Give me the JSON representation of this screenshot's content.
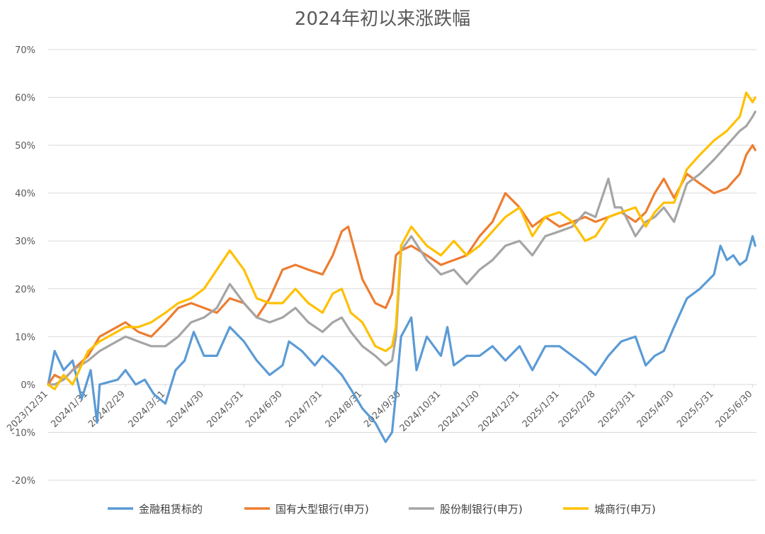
{
  "chart_data": {
    "type": "line",
    "title": "2024年初以来涨跌幅",
    "ylim": [
      -0.2,
      0.7
    ],
    "yticks": [
      -0.2,
      -0.1,
      0,
      0.1,
      0.2,
      0.3,
      0.4,
      0.5,
      0.6,
      0.7
    ],
    "ytick_labels": [
      "-20%",
      "-10%",
      "0%",
      "10%",
      "20%",
      "30%",
      "40%",
      "50%",
      "60%",
      "70%"
    ],
    "x_ticks": [
      "2023/12/31",
      "2024/1/31",
      "2024/2/29",
      "2024/3/31",
      "2024/4/30",
      "2024/5/31",
      "2024/6/30",
      "2024/7/31",
      "2024/8/31",
      "2024/9/30",
      "2024/10/31",
      "2024/11/30",
      "2024/12/31",
      "2025/1/31",
      "2025/2/28",
      "2025/3/31",
      "2025/4/30",
      "2025/5/31",
      "2025/6/30"
    ],
    "grid": true,
    "legend_position": "bottom",
    "series": [
      {
        "name": "金融租赁标的",
        "color": "#5B9BD5",
        "points": [
          [
            "2023/12/31",
            0
          ],
          [
            "2024/1/5",
            0.07
          ],
          [
            "2024/1/12",
            0.03
          ],
          [
            "2024/1/19",
            0.05
          ],
          [
            "2024/1/26",
            -0.03
          ],
          [
            "2024/2/2",
            0.03
          ],
          [
            "2024/2/7",
            -0.08
          ],
          [
            "2024/2/9",
            0
          ],
          [
            "2024/2/23",
            0.01
          ],
          [
            "2024/2/29",
            0.03
          ],
          [
            "2024/3/8",
            0
          ],
          [
            "2024/3/15",
            0.01
          ],
          [
            "2024/3/22",
            -0.02
          ],
          [
            "2024/3/31",
            -0.04
          ],
          [
            "2024/4/8",
            0.03
          ],
          [
            "2024/4/15",
            0.05
          ],
          [
            "2024/4/22",
            0.11
          ],
          [
            "2024/4/30",
            0.06
          ],
          [
            "2024/5/10",
            0.06
          ],
          [
            "2024/5/20",
            0.12
          ],
          [
            "2024/5/31",
            0.09
          ],
          [
            "2024/6/10",
            0.05
          ],
          [
            "2024/6/20",
            0.02
          ],
          [
            "2024/6/30",
            0.04
          ],
          [
            "2024/7/5",
            0.09
          ],
          [
            "2024/7/15",
            0.07
          ],
          [
            "2024/7/25",
            0.04
          ],
          [
            "2024/7/31",
            0.06
          ],
          [
            "2024/8/8",
            0.04
          ],
          [
            "2024/8/15",
            0.02
          ],
          [
            "2024/8/22",
            -0.01
          ],
          [
            "2024/8/31",
            -0.05
          ],
          [
            "2024/9/10",
            -0.08
          ],
          [
            "2024/9/18",
            -0.12
          ],
          [
            "2024/9/23",
            -0.1
          ],
          [
            "2024/9/26",
            -0.02
          ],
          [
            "2024/9/30",
            0.1
          ],
          [
            "2024/10/8",
            0.14
          ],
          [
            "2024/10/12",
            0.03
          ],
          [
            "2024/10/20",
            0.1
          ],
          [
            "2024/10/31",
            0.06
          ],
          [
            "2024/11/5",
            0.12
          ],
          [
            "2024/11/10",
            0.04
          ],
          [
            "2024/11/20",
            0.06
          ],
          [
            "2024/11/30",
            0.06
          ],
          [
            "2024/12/10",
            0.08
          ],
          [
            "2024/12/20",
            0.05
          ],
          [
            "2024/12/31",
            0.08
          ],
          [
            "2025/1/10",
            0.03
          ],
          [
            "2025/1/20",
            0.08
          ],
          [
            "2025/1/31",
            0.08
          ],
          [
            "2025/2/10",
            0.06
          ],
          [
            "2025/2/20",
            0.04
          ],
          [
            "2025/2/28",
            0.02
          ],
          [
            "2025/3/10",
            0.06
          ],
          [
            "2025/3/20",
            0.09
          ],
          [
            "2025/3/31",
            0.1
          ],
          [
            "2025/4/8",
            0.04
          ],
          [
            "2025/4/15",
            0.06
          ],
          [
            "2025/4/22",
            0.07
          ],
          [
            "2025/4/30",
            0.12
          ],
          [
            "2025/5/10",
            0.18
          ],
          [
            "2025/5/20",
            0.2
          ],
          [
            "2025/5/31",
            0.23
          ],
          [
            "2025/6/5",
            0.29
          ],
          [
            "2025/6/10",
            0.26
          ],
          [
            "2025/6/15",
            0.27
          ],
          [
            "2025/6/20",
            0.25
          ],
          [
            "2025/6/25",
            0.26
          ],
          [
            "2025/6/30",
            0.31
          ],
          [
            "2025/7/2",
            0.29
          ]
        ]
      },
      {
        "name": "国有大型银行(申万)",
        "color": "#ED7D31",
        "points": [
          [
            "2023/12/31",
            0
          ],
          [
            "2024/1/5",
            0.02
          ],
          [
            "2024/1/12",
            0.01
          ],
          [
            "2024/1/19",
            0.03
          ],
          [
            "2024/1/31",
            0.06
          ],
          [
            "2024/2/9",
            0.1
          ],
          [
            "2024/2/29",
            0.13
          ],
          [
            "2024/3/10",
            0.11
          ],
          [
            "2024/3/20",
            0.1
          ],
          [
            "2024/3/31",
            0.13
          ],
          [
            "2024/4/10",
            0.16
          ],
          [
            "2024/4/20",
            0.17
          ],
          [
            "2024/4/30",
            0.16
          ],
          [
            "2024/5/10",
            0.15
          ],
          [
            "2024/5/20",
            0.18
          ],
          [
            "2024/5/31",
            0.17
          ],
          [
            "2024/6/10",
            0.14
          ],
          [
            "2024/6/20",
            0.18
          ],
          [
            "2024/6/30",
            0.24
          ],
          [
            "2024/7/10",
            0.25
          ],
          [
            "2024/7/20",
            0.24
          ],
          [
            "2024/7/31",
            0.23
          ],
          [
            "2024/8/8",
            0.27
          ],
          [
            "2024/8/15",
            0.32
          ],
          [
            "2024/8/20",
            0.33
          ],
          [
            "2024/8/31",
            0.22
          ],
          [
            "2024/9/10",
            0.17
          ],
          [
            "2024/9/18",
            0.16
          ],
          [
            "2024/9/23",
            0.19
          ],
          [
            "2024/9/26",
            0.27
          ],
          [
            "2024/9/30",
            0.28
          ],
          [
            "2024/10/8",
            0.29
          ],
          [
            "2024/10/20",
            0.27
          ],
          [
            "2024/10/31",
            0.25
          ],
          [
            "2024/11/10",
            0.26
          ],
          [
            "2024/11/20",
            0.27
          ],
          [
            "2024/11/30",
            0.31
          ],
          [
            "2024/12/10",
            0.34
          ],
          [
            "2024/12/20",
            0.4
          ],
          [
            "2024/12/31",
            0.37
          ],
          [
            "2025/1/10",
            0.33
          ],
          [
            "2025/1/20",
            0.35
          ],
          [
            "2025/1/31",
            0.33
          ],
          [
            "2025/2/10",
            0.34
          ],
          [
            "2025/2/20",
            0.35
          ],
          [
            "2025/2/28",
            0.34
          ],
          [
            "2025/3/10",
            0.35
          ],
          [
            "2025/3/20",
            0.36
          ],
          [
            "2025/3/31",
            0.34
          ],
          [
            "2025/4/8",
            0.36
          ],
          [
            "2025/4/15",
            0.4
          ],
          [
            "2025/4/22",
            0.43
          ],
          [
            "2025/4/30",
            0.39
          ],
          [
            "2025/5/10",
            0.44
          ],
          [
            "2025/5/20",
            0.42
          ],
          [
            "2025/5/31",
            0.4
          ],
          [
            "2025/6/10",
            0.41
          ],
          [
            "2025/6/20",
            0.44
          ],
          [
            "2025/6/25",
            0.48
          ],
          [
            "2025/6/30",
            0.5
          ],
          [
            "2025/7/2",
            0.49
          ]
        ]
      },
      {
        "name": "股份制银行(申万)",
        "color": "#A5A5A5",
        "points": [
          [
            "2023/12/31",
            0
          ],
          [
            "2024/1/5",
            0
          ],
          [
            "2024/1/12",
            0.01
          ],
          [
            "2024/1/19",
            0.03
          ],
          [
            "2024/1/31",
            0.05
          ],
          [
            "2024/2/9",
            0.07
          ],
          [
            "2024/2/29",
            0.1
          ],
          [
            "2024/3/10",
            0.09
          ],
          [
            "2024/3/20",
            0.08
          ],
          [
            "2024/3/31",
            0.08
          ],
          [
            "2024/4/10",
            0.1
          ],
          [
            "2024/4/20",
            0.13
          ],
          [
            "2024/4/30",
            0.14
          ],
          [
            "2024/5/10",
            0.16
          ],
          [
            "2024/5/20",
            0.21
          ],
          [
            "2024/5/31",
            0.17
          ],
          [
            "2024/6/10",
            0.14
          ],
          [
            "2024/6/20",
            0.13
          ],
          [
            "2024/6/30",
            0.14
          ],
          [
            "2024/7/10",
            0.16
          ],
          [
            "2024/7/20",
            0.13
          ],
          [
            "2024/7/31",
            0.11
          ],
          [
            "2024/8/8",
            0.13
          ],
          [
            "2024/8/15",
            0.14
          ],
          [
            "2024/8/22",
            0.11
          ],
          [
            "2024/8/31",
            0.08
          ],
          [
            "2024/9/10",
            0.06
          ],
          [
            "2024/9/18",
            0.04
          ],
          [
            "2024/9/23",
            0.05
          ],
          [
            "2024/9/26",
            0.1
          ],
          [
            "2024/9/30",
            0.28
          ],
          [
            "2024/10/8",
            0.31
          ],
          [
            "2024/10/20",
            0.26
          ],
          [
            "2024/10/31",
            0.23
          ],
          [
            "2024/11/10",
            0.24
          ],
          [
            "2024/11/20",
            0.21
          ],
          [
            "2024/11/30",
            0.24
          ],
          [
            "2024/12/10",
            0.26
          ],
          [
            "2024/12/20",
            0.29
          ],
          [
            "2024/12/31",
            0.3
          ],
          [
            "2025/1/10",
            0.27
          ],
          [
            "2025/1/20",
            0.31
          ],
          [
            "2025/1/31",
            0.32
          ],
          [
            "2025/2/10",
            0.33
          ],
          [
            "2025/2/20",
            0.36
          ],
          [
            "2025/2/28",
            0.35
          ],
          [
            "2025/3/10",
            0.43
          ],
          [
            "2025/3/15",
            0.37
          ],
          [
            "2025/3/20",
            0.37
          ],
          [
            "2025/3/31",
            0.31
          ],
          [
            "2025/4/8",
            0.34
          ],
          [
            "2025/4/15",
            0.35
          ],
          [
            "2025/4/22",
            0.37
          ],
          [
            "2025/4/30",
            0.34
          ],
          [
            "2025/5/10",
            0.42
          ],
          [
            "2025/5/20",
            0.44
          ],
          [
            "2025/5/31",
            0.47
          ],
          [
            "2025/6/10",
            0.5
          ],
          [
            "2025/6/20",
            0.53
          ],
          [
            "2025/6/25",
            0.54
          ],
          [
            "2025/6/30",
            0.56
          ],
          [
            "2025/7/2",
            0.57
          ]
        ]
      },
      {
        "name": "城商行(申万)",
        "color": "#FFC000",
        "points": [
          [
            "2023/12/31",
            0
          ],
          [
            "2024/1/5",
            -0.01
          ],
          [
            "2024/1/12",
            0.02
          ],
          [
            "2024/1/19",
            0
          ],
          [
            "2024/1/31",
            0.07
          ],
          [
            "2024/2/9",
            0.09
          ],
          [
            "2024/2/29",
            0.12
          ],
          [
            "2024/3/10",
            0.12
          ],
          [
            "2024/3/20",
            0.13
          ],
          [
            "2024/3/31",
            0.15
          ],
          [
            "2024/4/10",
            0.17
          ],
          [
            "2024/4/20",
            0.18
          ],
          [
            "2024/4/30",
            0.2
          ],
          [
            "2024/5/10",
            0.24
          ],
          [
            "2024/5/20",
            0.28
          ],
          [
            "2024/5/31",
            0.24
          ],
          [
            "2024/6/10",
            0.18
          ],
          [
            "2024/6/20",
            0.17
          ],
          [
            "2024/6/30",
            0.17
          ],
          [
            "2024/7/10",
            0.2
          ],
          [
            "2024/7/20",
            0.17
          ],
          [
            "2024/7/31",
            0.15
          ],
          [
            "2024/8/8",
            0.19
          ],
          [
            "2024/8/15",
            0.2
          ],
          [
            "2024/8/22",
            0.15
          ],
          [
            "2024/8/31",
            0.13
          ],
          [
            "2024/9/10",
            0.08
          ],
          [
            "2024/9/18",
            0.07
          ],
          [
            "2024/9/23",
            0.08
          ],
          [
            "2024/9/26",
            0.12
          ],
          [
            "2024/9/30",
            0.29
          ],
          [
            "2024/10/8",
            0.33
          ],
          [
            "2024/10/20",
            0.29
          ],
          [
            "2024/10/31",
            0.27
          ],
          [
            "2024/11/10",
            0.3
          ],
          [
            "2024/11/20",
            0.27
          ],
          [
            "2024/11/30",
            0.29
          ],
          [
            "2024/12/10",
            0.32
          ],
          [
            "2024/12/20",
            0.35
          ],
          [
            "2024/12/31",
            0.37
          ],
          [
            "2025/1/10",
            0.31
          ],
          [
            "2025/1/20",
            0.35
          ],
          [
            "2025/1/31",
            0.36
          ],
          [
            "2025/2/10",
            0.34
          ],
          [
            "2025/2/20",
            0.3
          ],
          [
            "2025/2/28",
            0.31
          ],
          [
            "2025/3/10",
            0.35
          ],
          [
            "2025/3/20",
            0.36
          ],
          [
            "2025/3/31",
            0.37
          ],
          [
            "2025/4/8",
            0.33
          ],
          [
            "2025/4/15",
            0.36
          ],
          [
            "2025/4/22",
            0.38
          ],
          [
            "2025/4/30",
            0.38
          ],
          [
            "2025/5/10",
            0.45
          ],
          [
            "2025/5/20",
            0.48
          ],
          [
            "2025/5/31",
            0.51
          ],
          [
            "2025/6/10",
            0.53
          ],
          [
            "2025/6/20",
            0.56
          ],
          [
            "2025/6/25",
            0.61
          ],
          [
            "2025/6/30",
            0.59
          ],
          [
            "2025/7/2",
            0.6
          ]
        ]
      }
    ]
  }
}
